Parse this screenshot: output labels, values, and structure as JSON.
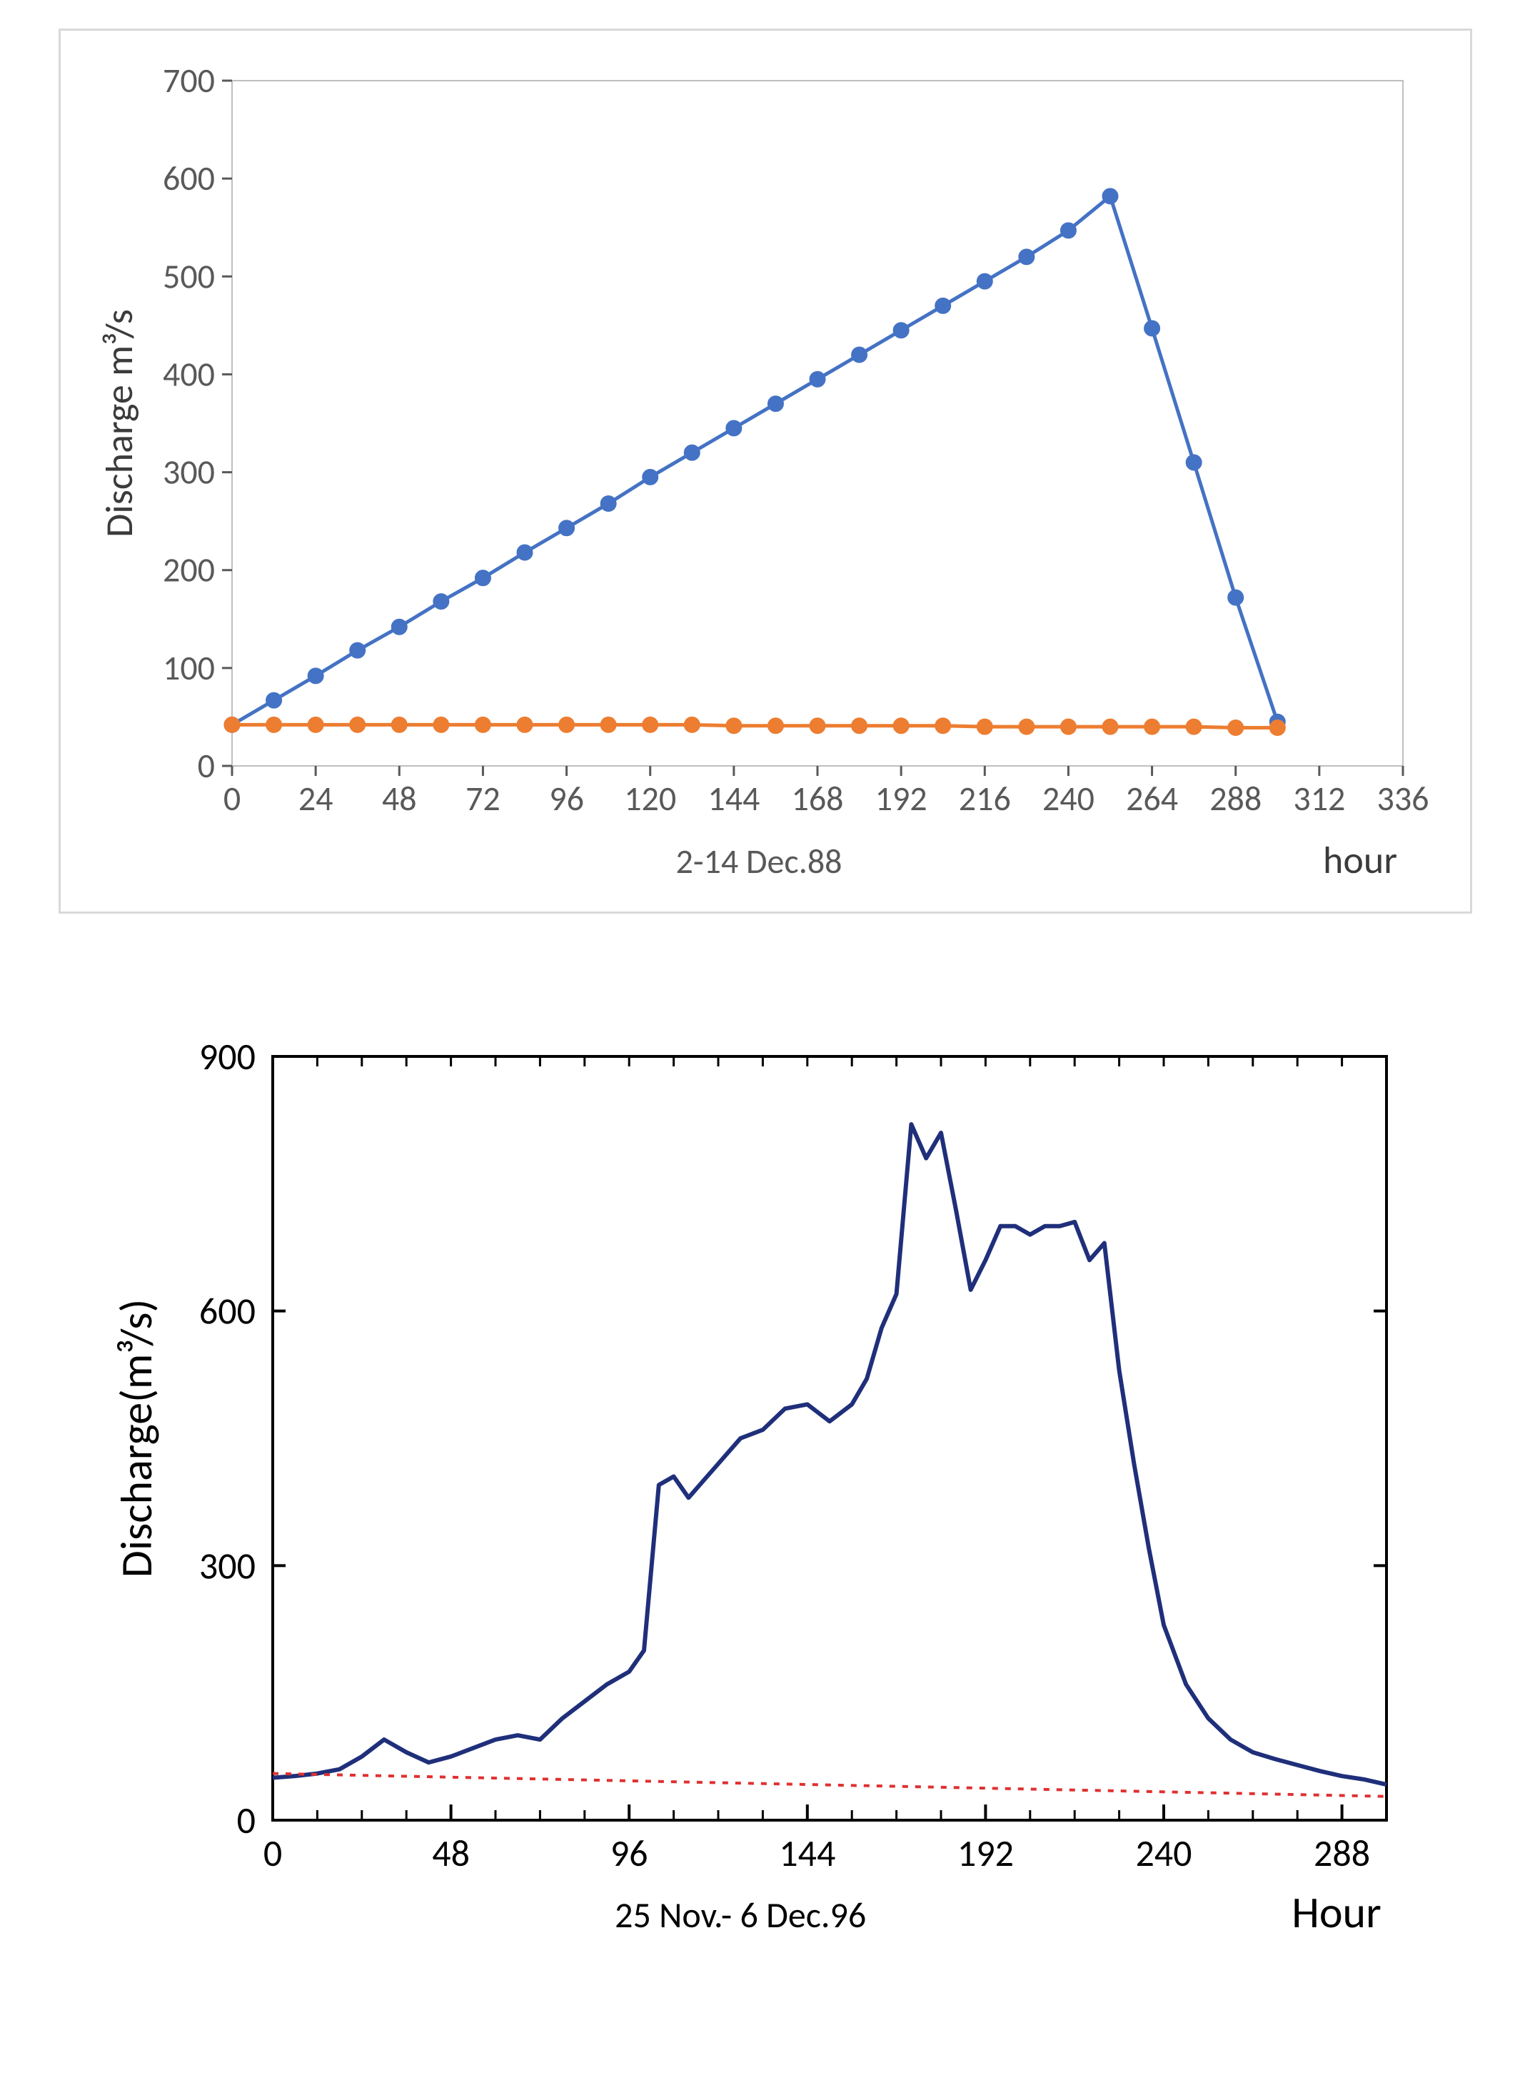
{
  "chart1": {
    "type": "line",
    "title_below": "2-14 Dec.88",
    "x_axis_label": "hour",
    "y_axis_label": "Discharge m³/s",
    "xlim": [
      0,
      336
    ],
    "xtick_step": 24,
    "ylim": [
      0,
      700
    ],
    "ytick_step": 100,
    "background_color": "#ffffff",
    "plot_border_color": "#bfbfbf",
    "tick_label_color": "#595959",
    "axis_label_color": "#3b3b3b",
    "tick_fontsize": 48,
    "axis_label_fontsize": 54,
    "title_fontsize": 48,
    "outer_border_color": "#d9d9d9",
    "line_width": 5,
    "marker_radius": 11,
    "series": [
      {
        "name": "series-blue",
        "color": "#4472c4",
        "marker": "circle",
        "x": [
          0,
          12,
          24,
          36,
          48,
          60,
          72,
          84,
          96,
          108,
          120,
          132,
          144,
          156,
          168,
          180,
          192,
          204,
          216,
          228,
          240,
          252,
          264,
          276,
          288,
          300
        ],
        "y": [
          42,
          67,
          92,
          118,
          142,
          168,
          192,
          218,
          243,
          268,
          295,
          320,
          345,
          370,
          395,
          420,
          445,
          470,
          495,
          520,
          547,
          582,
          447,
          310,
          172,
          45
        ]
      },
      {
        "name": "series-orange",
        "color": "#ed7d31",
        "marker": "circle",
        "x": [
          0,
          12,
          24,
          36,
          48,
          60,
          72,
          84,
          96,
          108,
          120,
          132,
          144,
          156,
          168,
          180,
          192,
          204,
          216,
          228,
          240,
          252,
          264,
          276,
          288,
          300
        ],
        "y": [
          42,
          42,
          42,
          42,
          42,
          42,
          42,
          42,
          42,
          42,
          42,
          42,
          41,
          41,
          41,
          41,
          41,
          41,
          40,
          40,
          40,
          40,
          40,
          40,
          39,
          39
        ]
      }
    ]
  },
  "chart2": {
    "type": "line",
    "title_below": "25 Nov.- 6 Dec.96",
    "x_axis_label": "Hour",
    "y_axis_label": "Discharge(m³/s)",
    "xlim": [
      0,
      300
    ],
    "xticks": [
      0,
      48,
      96,
      144,
      192,
      240,
      288
    ],
    "x_minor_step": 12,
    "ylim": [
      0,
      900
    ],
    "ytick_step": 300,
    "background_color": "#ffffff",
    "plot_border_color": "#000000",
    "tick_label_color": "#000000",
    "axis_label_color": "#000000",
    "tick_fontsize": 52,
    "axis_label_fontsize": 62,
    "title_fontsize": 50,
    "series": [
      {
        "name": "series-navy",
        "color": "#1f2f7a",
        "line_width": 6,
        "dash": "none",
        "x": [
          0,
          6,
          12,
          18,
          24,
          30,
          36,
          42,
          48,
          54,
          60,
          66,
          72,
          78,
          84,
          90,
          96,
          100,
          104,
          108,
          112,
          116,
          120,
          126,
          132,
          138,
          144,
          150,
          156,
          160,
          164,
          168,
          172,
          176,
          180,
          184,
          188,
          192,
          196,
          200,
          204,
          208,
          212,
          216,
          220,
          224,
          228,
          232,
          236,
          240,
          246,
          252,
          258,
          264,
          270,
          276,
          282,
          288,
          294,
          300
        ],
        "y": [
          50,
          52,
          55,
          60,
          75,
          95,
          80,
          68,
          75,
          85,
          95,
          100,
          95,
          120,
          140,
          160,
          175,
          200,
          395,
          405,
          380,
          400,
          420,
          450,
          460,
          485,
          490,
          470,
          490,
          520,
          580,
          620,
          820,
          780,
          810,
          720,
          625,
          660,
          700,
          700,
          690,
          700,
          700,
          705,
          660,
          680,
          530,
          420,
          320,
          230,
          160,
          120,
          95,
          80,
          72,
          65,
          58,
          52,
          48,
          42
        ]
      },
      {
        "name": "series-red-dashed",
        "color": "#e03030",
        "line_width": 4,
        "dash": "8,10",
        "x": [
          0,
          300
        ],
        "y": [
          55,
          28
        ]
      }
    ]
  }
}
